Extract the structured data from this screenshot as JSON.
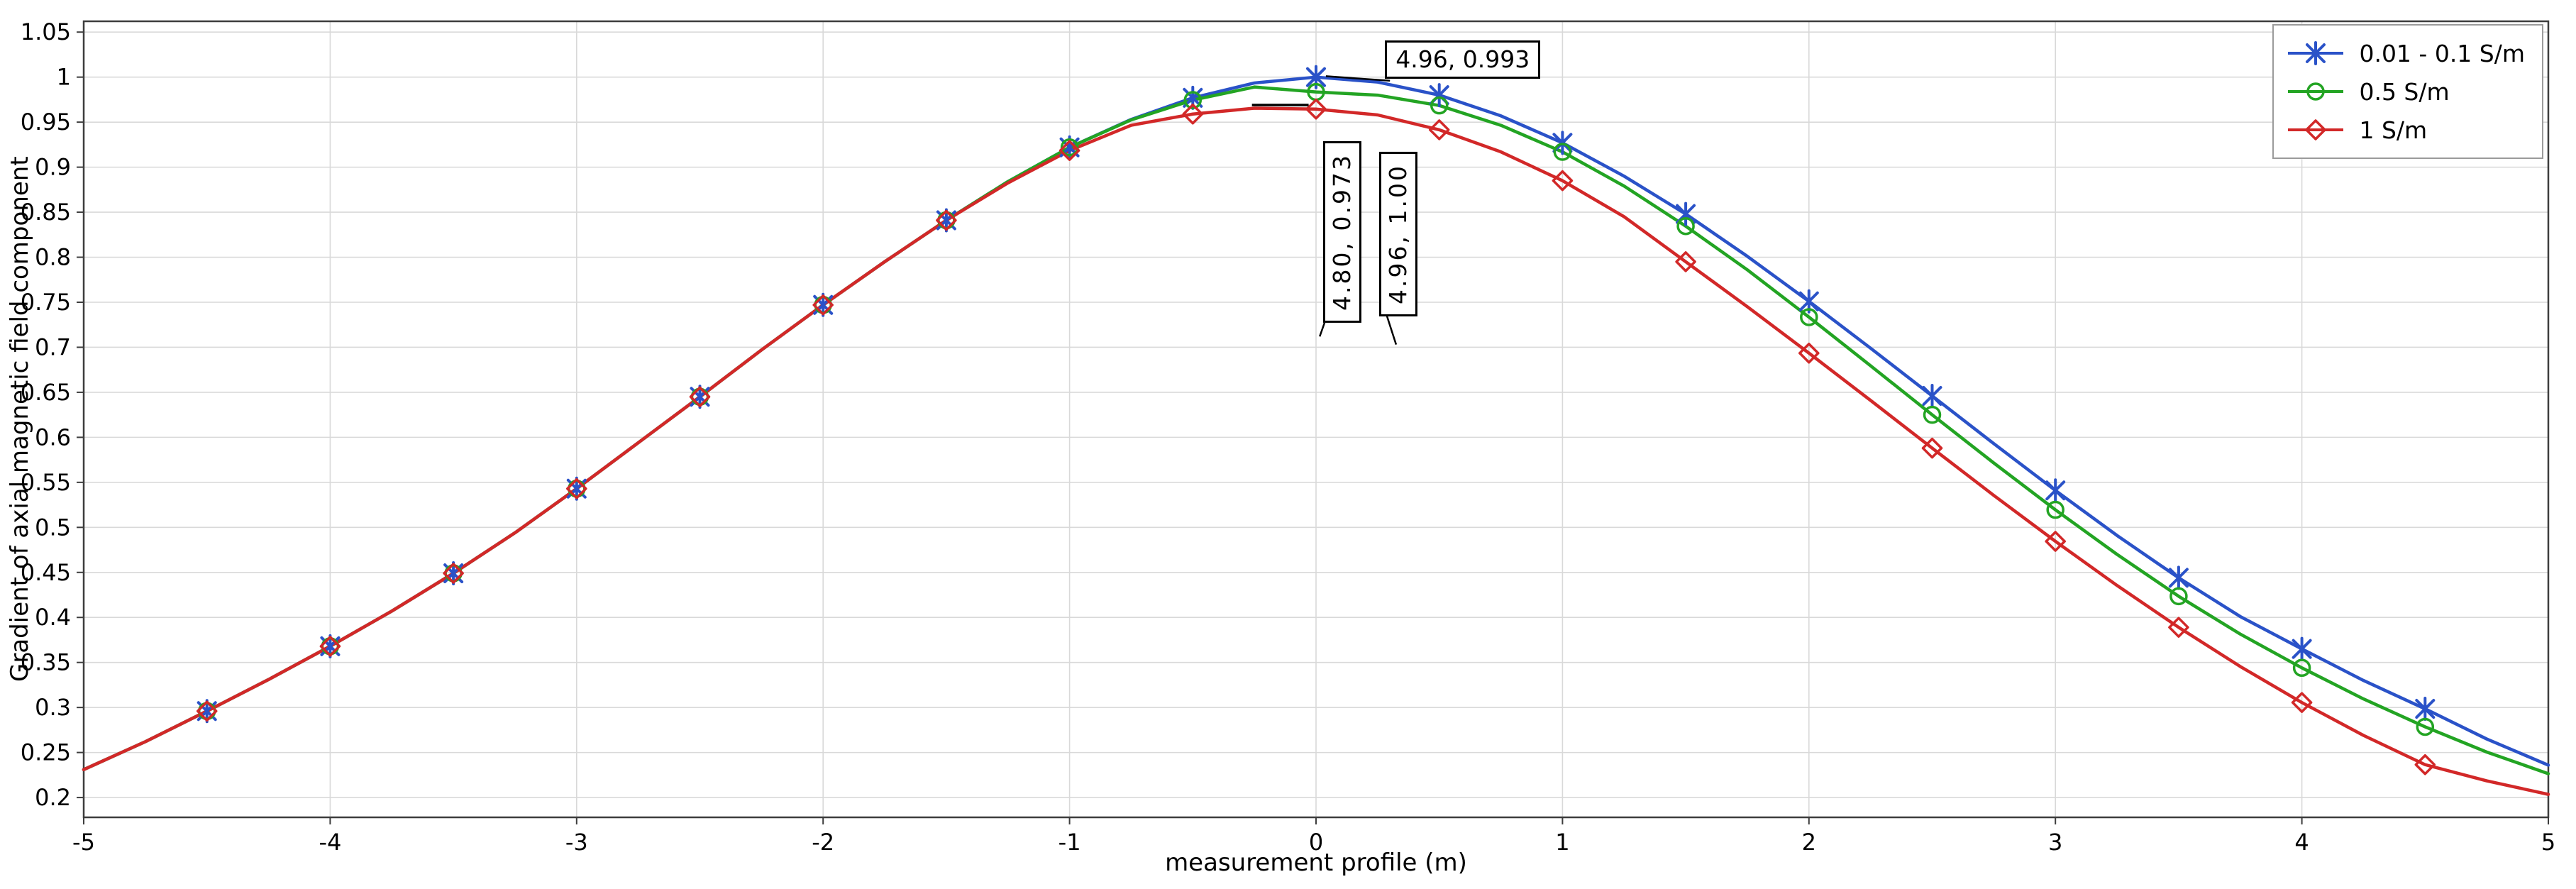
{
  "chart_data": {
    "type": "line",
    "title": "",
    "xlabel": "measurement profile (m)",
    "ylabel": "Gradient of axial magnetic field component",
    "xlim": [
      -5,
      5
    ],
    "ylim": [
      0.178,
      1.062
    ],
    "grid": true,
    "legend_position": "top-right",
    "colors": {
      "grid": "#d9d9d9",
      "frame": "#3d3d3d",
      "background": "#ffffff",
      "annotation_border": "#000000",
      "legend_border": "#9b9b9b"
    },
    "xticks": [
      -5,
      -4,
      -3,
      -2,
      -1,
      0,
      1,
      2,
      3,
      4,
      5
    ],
    "xtick_labels": [
      "-5",
      "-4",
      "-3",
      "-2",
      "-1",
      "0",
      "1",
      "2",
      "3",
      "4",
      "5"
    ],
    "yticks": [
      0.2,
      0.25,
      0.3,
      0.35,
      0.4,
      0.45,
      0.5,
      0.55,
      0.6,
      0.65,
      0.7,
      0.75,
      0.8,
      0.85,
      0.9,
      0.95,
      1,
      1.05
    ],
    "ytick_labels": [
      "0.2",
      "0.25",
      "0.3",
      "0.35",
      "0.4",
      "0.45",
      "0.5",
      "0.55",
      "0.6",
      "0.65",
      "0.7",
      "0.75",
      "0.8",
      "0.85",
      "0.9",
      "0.95",
      "1",
      "1.05"
    ],
    "x": [
      -5,
      -4.75,
      -4.5,
      -4.25,
      -4,
      -3.75,
      -3.5,
      -3.25,
      -3,
      -2.75,
      -2.5,
      -2.25,
      -2,
      -1.75,
      -1.5,
      -1.25,
      -1,
      -0.75,
      -0.5,
      -0.25,
      0,
      0.25,
      0.5,
      0.75,
      1,
      1.25,
      1.5,
      1.75,
      2,
      2.25,
      2.5,
      2.75,
      3,
      3.25,
      3.5,
      3.75,
      4,
      4.25,
      4.5,
      4.75,
      5
    ],
    "marker_xs": [
      -4.5,
      -4,
      -3.5,
      -3,
      -2.5,
      -2,
      -1.5,
      -1,
      -0.5,
      0,
      0.5,
      1,
      1.5,
      2,
      2.5,
      3,
      3.5,
      4,
      4.5
    ],
    "series": [
      {
        "name": "0.01 - 0.1 S/m",
        "color": "#2a52c8",
        "marker": "star",
        "values": [
          0.231,
          0.262,
          0.296,
          0.331,
          0.368,
          0.407,
          0.449,
          0.494,
          0.543,
          0.594,
          0.645,
          0.697,
          0.747,
          0.795,
          0.841,
          0.884,
          0.922,
          0.953,
          0.977,
          0.9935,
          1.0,
          0.9945,
          0.98,
          0.957,
          0.927,
          0.89,
          0.848,
          0.801,
          0.751,
          0.699,
          0.646,
          0.593,
          0.541,
          0.491,
          0.444,
          0.401,
          0.365,
          0.33,
          0.2985,
          0.265,
          0.236
        ]
      },
      {
        "name": "0.5 S/m",
        "color": "#23a423",
        "marker": "circle",
        "values": [
          0.231,
          0.262,
          0.296,
          0.331,
          0.368,
          0.407,
          0.449,
          0.494,
          0.543,
          0.594,
          0.645,
          0.697,
          0.747,
          0.795,
          0.841,
          0.884,
          0.922,
          0.9525,
          0.9745,
          0.989,
          0.9835,
          0.98,
          0.9685,
          0.9465,
          0.917,
          0.879,
          0.8345,
          0.786,
          0.7335,
          0.6795,
          0.625,
          0.5715,
          0.5195,
          0.47,
          0.4235,
          0.3815,
          0.344,
          0.3095,
          0.2785,
          0.2505,
          0.2265
        ]
      },
      {
        "name": "1 S/m",
        "color": "#d22828",
        "marker": "diamond",
        "values": [
          0.231,
          0.262,
          0.296,
          0.331,
          0.368,
          0.407,
          0.449,
          0.494,
          0.543,
          0.594,
          0.645,
          0.697,
          0.747,
          0.795,
          0.841,
          0.8825,
          0.9185,
          0.9465,
          0.959,
          0.9655,
          0.9645,
          0.958,
          0.9415,
          0.917,
          0.885,
          0.845,
          0.795,
          0.745,
          0.6935,
          0.641,
          0.588,
          0.5355,
          0.4845,
          0.4355,
          0.389,
          0.3455,
          0.3055,
          0.269,
          0.2365,
          0.2185,
          0.2035
        ]
      }
    ],
    "annotations": [
      {
        "text": "4.96, 0.993",
        "x": 0.28,
        "y": 1.041,
        "rotated": false,
        "leader": [
          [
            0.3,
            0.996
          ],
          [
            0.04,
            1.001
          ]
        ]
      },
      {
        "text": "4.80, 0.973",
        "x": 0.03,
        "y": 0.929,
        "rotated": true,
        "leader": [
          [
            0.06,
            0.747
          ],
          [
            0.015,
            0.712
          ]
        ]
      },
      {
        "text": "4.96, 1.00",
        "x": 0.255,
        "y": 0.917,
        "rotated": true,
        "leader": [
          [
            0.285,
            0.737
          ],
          [
            0.325,
            0.703
          ]
        ]
      }
    ],
    "marks": [
      {
        "from": [
          -0.26,
          0.969
        ],
        "to": [
          -0.03,
          0.969
        ]
      }
    ]
  }
}
